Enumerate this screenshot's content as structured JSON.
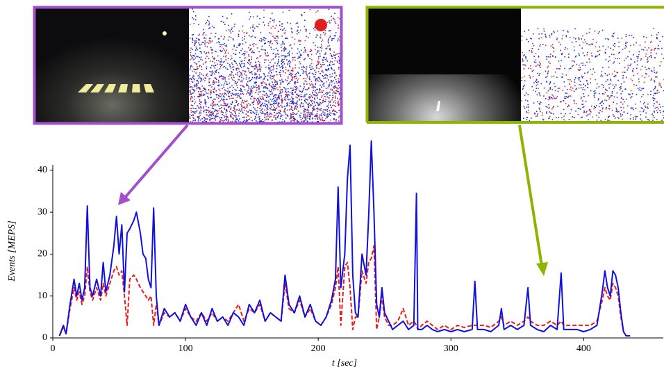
{
  "chart_data": {
    "type": "line",
    "xlabel": "t [sec]",
    "ylabel": "Events [MEPS]",
    "xlim": [
      0,
      460
    ],
    "xticks": [
      0,
      100,
      200,
      300,
      400
    ],
    "ylim": [
      0,
      41.3
    ],
    "yticks": [
      0,
      10,
      20,
      30,
      40
    ],
    "x": [
      5,
      8,
      10,
      13,
      16,
      18,
      20,
      22,
      24,
      26,
      28,
      30,
      33,
      36,
      38,
      40,
      43,
      46,
      48,
      50,
      52,
      54,
      56,
      58,
      61,
      63,
      66,
      68,
      70,
      72,
      74,
      76,
      78,
      80,
      84,
      88,
      92,
      96,
      100,
      104,
      108,
      112,
      116,
      120,
      124,
      128,
      132,
      136,
      140,
      144,
      148,
      152,
      156,
      160,
      164,
      168,
      172,
      175,
      178,
      182,
      186,
      190,
      194,
      198,
      202,
      206,
      210,
      213,
      215,
      217,
      220,
      222,
      224,
      226,
      228,
      230,
      233,
      236,
      238,
      240,
      242,
      244,
      246,
      248,
      250,
      253,
      256,
      260,
      264,
      268,
      272,
      274,
      275,
      278,
      282,
      286,
      290,
      295,
      300,
      305,
      310,
      316,
      318,
      320,
      325,
      330,
      336,
      338,
      340,
      345,
      350,
      355,
      358,
      360,
      365,
      370,
      375,
      380,
      383,
      385,
      390,
      395,
      400,
      405,
      410,
      414,
      416,
      418,
      420,
      422,
      424,
      426,
      428,
      430,
      432,
      435
    ],
    "series": [
      {
        "color": "#1010e0",
        "dashed": false,
        "values": [
          0.5,
          3,
          1,
          8,
          14,
          10,
          13,
          9,
          12,
          31.5,
          12,
          10,
          14,
          10,
          18,
          11,
          15,
          22,
          29,
          20,
          27,
          11,
          25,
          26,
          28,
          30,
          25,
          20,
          19,
          14,
          12,
          31,
          10,
          3,
          7,
          5,
          6,
          4,
          8,
          5,
          3,
          6,
          3,
          7,
          4,
          5,
          3,
          6,
          5,
          3,
          8,
          6,
          9,
          4,
          6,
          5,
          4,
          15,
          8,
          6,
          10,
          5,
          8,
          4,
          3,
          5,
          9,
          14,
          36,
          12,
          20,
          38,
          46,
          15,
          6,
          5,
          20,
          15,
          29,
          47,
          30,
          8,
          5,
          12,
          6,
          4,
          2,
          3,
          4,
          2,
          3,
          34.5,
          2,
          2,
          3,
          2,
          1.5,
          2,
          1.5,
          2,
          1.5,
          2,
          13.5,
          2,
          2,
          1.5,
          3,
          7,
          2,
          3,
          2,
          3,
          12,
          3,
          2,
          1.5,
          3,
          2,
          15.5,
          2,
          2,
          2,
          1.5,
          2,
          3,
          11,
          16,
          12,
          10,
          16,
          15,
          12,
          6,
          1.5,
          0.5,
          0.5
        ]
      },
      {
        "color": "#e81c1c",
        "dashed": true,
        "values": [
          0.5,
          2.5,
          1,
          7,
          12,
          9,
          11,
          8,
          10,
          17,
          11,
          9,
          12,
          9,
          13,
          10,
          13,
          16,
          17,
          15,
          16,
          10,
          3,
          14,
          15,
          14,
          12,
          11,
          10,
          9,
          10,
          3,
          8,
          3,
          6,
          5,
          6,
          4,
          7,
          5,
          4,
          6,
          4,
          6,
          4,
          5,
          4,
          6,
          8,
          4,
          7,
          6,
          8,
          4,
          6,
          5,
          4,
          13,
          7,
          6,
          9,
          5,
          7,
          4,
          3,
          5,
          8,
          12,
          17,
          3,
          17,
          18,
          12,
          2,
          5,
          5,
          16,
          13,
          18,
          19,
          22,
          2,
          5,
          10,
          5,
          3,
          3,
          4,
          7,
          3,
          4,
          3,
          2,
          3,
          4,
          3,
          2,
          3,
          2,
          3,
          2.5,
          3,
          3,
          3,
          3,
          2.5,
          4,
          5,
          3,
          4,
          3,
          4,
          5,
          4,
          3,
          3,
          4,
          3,
          4,
          3,
          3,
          3,
          3,
          3,
          4,
          9,
          12,
          10,
          9,
          13,
          12,
          10,
          5,
          1.5,
          0.5,
          0.5
        ]
      }
    ]
  }
}
